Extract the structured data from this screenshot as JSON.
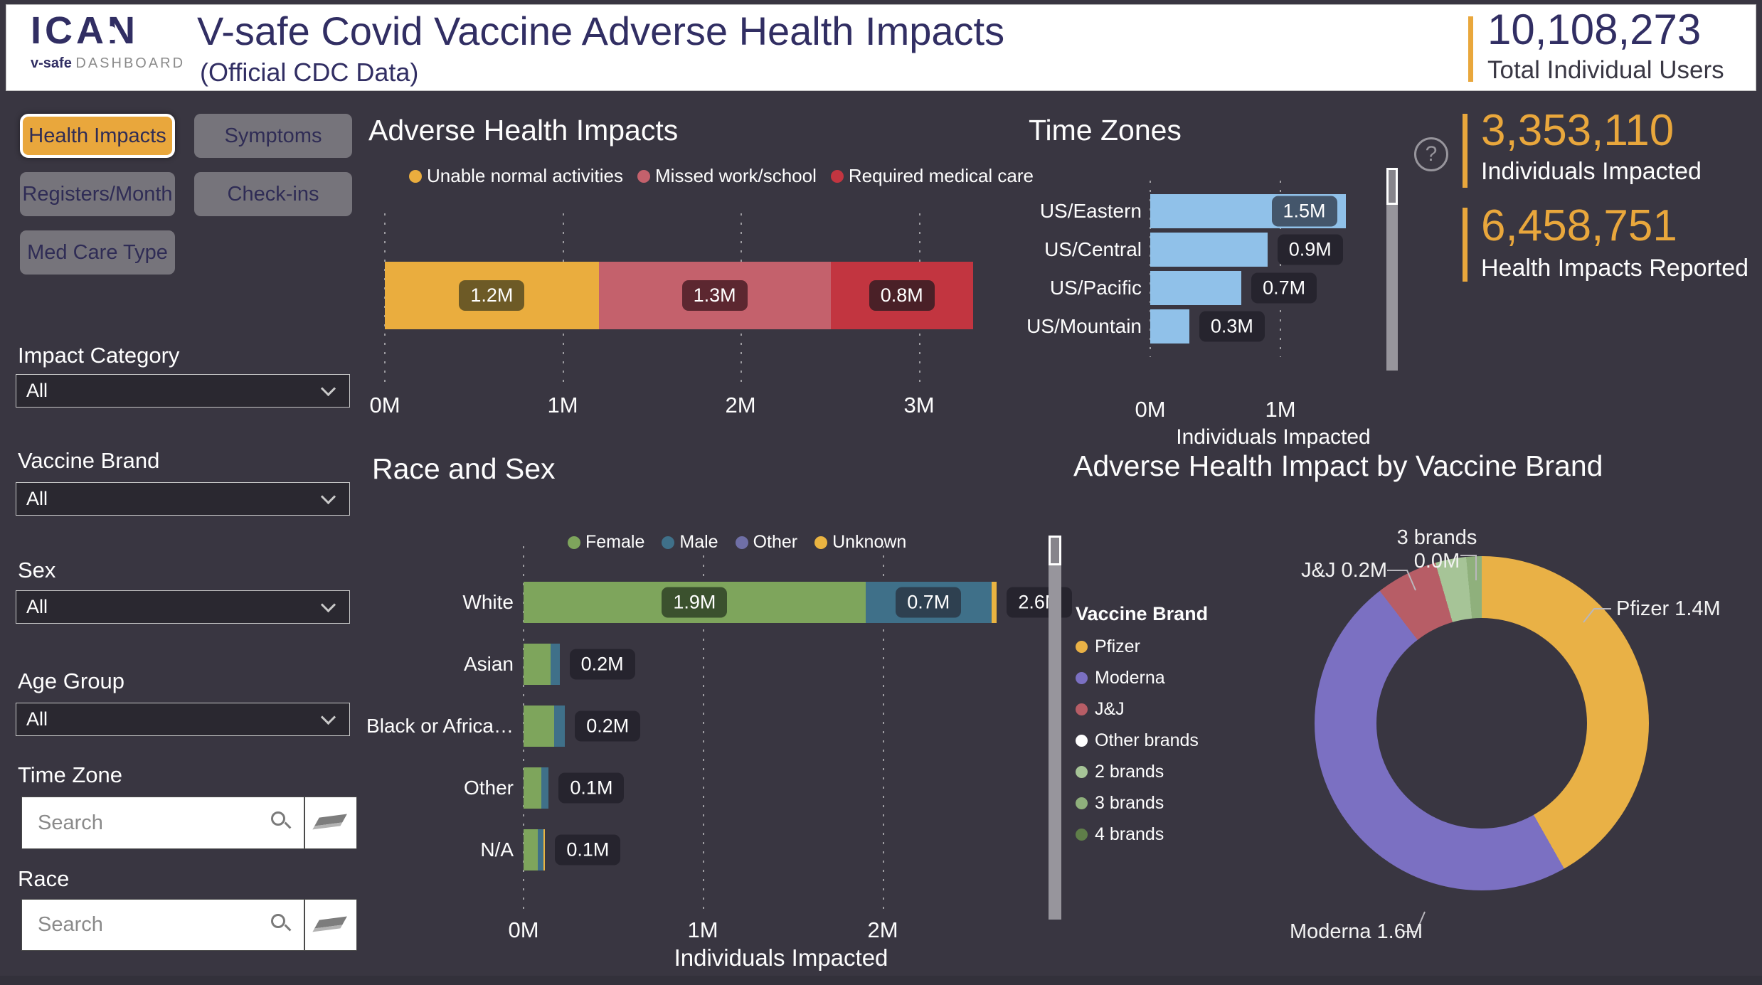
{
  "header": {
    "logo": {
      "brand": "ICAN",
      "sub_bold": "v-safe",
      "sub_rest": "DASHBOARD"
    },
    "title": "V-safe Covid Vaccine Adverse Health Impacts",
    "subtitle": "(Official CDC Data)",
    "kpi": {
      "value": "10,108,273",
      "label": "Total Individual Users"
    }
  },
  "nav": {
    "buttons": [
      {
        "label": "Health Impacts",
        "active": true
      },
      {
        "label": "Symptoms",
        "active": false
      },
      {
        "label": "Registers/Month",
        "active": false
      },
      {
        "label": "Check-ins",
        "active": false
      },
      {
        "label": "Med Care Type",
        "active": false
      }
    ]
  },
  "filters": {
    "impact_category": {
      "label": "Impact Category",
      "value": "All"
    },
    "vaccine_brand": {
      "label": "Vaccine Brand",
      "value": "All"
    },
    "sex": {
      "label": "Sex",
      "value": "All"
    },
    "age_group": {
      "label": "Age Group",
      "value": "All"
    },
    "time_zone": {
      "label": "Time Zone",
      "placeholder": "Search"
    },
    "race": {
      "label": "Race",
      "placeholder": "Search"
    }
  },
  "kpis": {
    "individuals_impacted": {
      "value": "3,353,110",
      "label": "Individuals Impacted"
    },
    "health_impacts": {
      "value": "6,458,751",
      "label": "Health Impacts Reported"
    }
  },
  "help_icon": {
    "glyph": "?"
  },
  "accent": {
    "orange": "#E9A73C",
    "background": "#393641",
    "header_text": "#312E63"
  },
  "chart_data": [
    {
      "type": "bar",
      "variant": "stacked-horizontal",
      "title": "Adverse Health Impacts",
      "series": [
        {
          "name": "Unable normal activities",
          "value_m": 1.2,
          "label": "1.2M",
          "color": "#EAAD3E"
        },
        {
          "name": "Missed work/school",
          "value_m": 1.3,
          "label": "1.3M",
          "color": "#C4616C"
        },
        {
          "name": "Required medical care",
          "value_m": 0.8,
          "label": "0.8M",
          "color": "#C23540"
        }
      ],
      "x_ticks": [
        "0M",
        "1M",
        "2M",
        "3M"
      ],
      "xlim_m": [
        0,
        3.3
      ],
      "grid": "dotted-vertical"
    },
    {
      "type": "bar",
      "variant": "horizontal",
      "title": "Time Zones",
      "categories": [
        "US/Eastern",
        "US/Central",
        "US/Pacific",
        "US/Mountain"
      ],
      "values_m": [
        1.5,
        0.9,
        0.7,
        0.3
      ],
      "labels": [
        "1.5M",
        "0.9M",
        "0.7M",
        "0.3M"
      ],
      "bar_color": "#90C1E9",
      "x_ticks": [
        "0M",
        "1M"
      ],
      "xlim_m": [
        0,
        1.9
      ],
      "xlabel": "Individuals Impacted"
    },
    {
      "type": "bar",
      "variant": "stacked-horizontal",
      "title": "Race and Sex",
      "legend": [
        {
          "name": "Female",
          "color": "#7EA55C"
        },
        {
          "name": "Male",
          "color": "#3F7089"
        },
        {
          "name": "Other",
          "color": "#6F6FA6"
        },
        {
          "name": "Unknown",
          "color": "#EAB441"
        }
      ],
      "rows": [
        {
          "category": "White",
          "segments": [
            {
              "name": "Female",
              "value_m": 1.9,
              "label": "1.9M"
            },
            {
              "name": "Male",
              "value_m": 0.7,
              "label": "0.7M"
            },
            {
              "name": "Unknown",
              "value_m": 0.03
            }
          ],
          "total_label": "2.6M"
        },
        {
          "category": "Asian",
          "segments": [
            {
              "name": "Female",
              "value_m": 0.15
            },
            {
              "name": "Male",
              "value_m": 0.05
            }
          ],
          "total_label": "0.2M"
        },
        {
          "category": "Black or Africa…",
          "segments": [
            {
              "name": "Female",
              "value_m": 0.17
            },
            {
              "name": "Male",
              "value_m": 0.06
            }
          ],
          "total_label": "0.2M"
        },
        {
          "category": "Other",
          "segments": [
            {
              "name": "Female",
              "value_m": 0.1
            },
            {
              "name": "Male",
              "value_m": 0.04
            }
          ],
          "total_label": "0.1M"
        },
        {
          "category": "N/A",
          "segments": [
            {
              "name": "Female",
              "value_m": 0.08
            },
            {
              "name": "Male",
              "value_m": 0.03
            },
            {
              "name": "Unknown",
              "value_m": 0.01
            }
          ],
          "total_label": "0.1M"
        }
      ],
      "x_ticks": [
        "0M",
        "1M",
        "2M"
      ],
      "xlim_m": [
        0,
        2.0
      ],
      "xlabel": "Individuals Impacted"
    },
    {
      "type": "pie",
      "variant": "donut",
      "title": "Adverse Health Impact by Vaccine Brand",
      "legend_title": "Vaccine Brand",
      "legend": [
        {
          "name": "Pfizer",
          "color": "#E9B146"
        },
        {
          "name": "Moderna",
          "color": "#7B70C2"
        },
        {
          "name": "J&J",
          "color": "#B75D66"
        },
        {
          "name": "Other brands",
          "color": "#FFFFFF"
        },
        {
          "name": "2 brands",
          "color": "#A6C497"
        },
        {
          "name": "3 brands",
          "color": "#8FB07C"
        },
        {
          "name": "4 brands",
          "color": "#5F7E49"
        }
      ],
      "slices": [
        {
          "name": "Pfizer",
          "value_m": 1.4,
          "color": "#E9B146",
          "callout": "Pfizer 1.4M"
        },
        {
          "name": "Moderna",
          "value_m": 1.6,
          "color": "#7B70C2",
          "callout": "Moderna 1.6M"
        },
        {
          "name": "J&J",
          "value_m": 0.2,
          "color": "#B75D66",
          "callout": "J&J 0.2M"
        },
        {
          "name": "2 brands",
          "value_m": 0.1,
          "color": "#A6C497"
        },
        {
          "name": "3 brands",
          "value_m": 0.05,
          "color": "#8FB07C",
          "callout_line1": "3 brands",
          "callout_line2": "0.0M"
        }
      ]
    }
  ]
}
